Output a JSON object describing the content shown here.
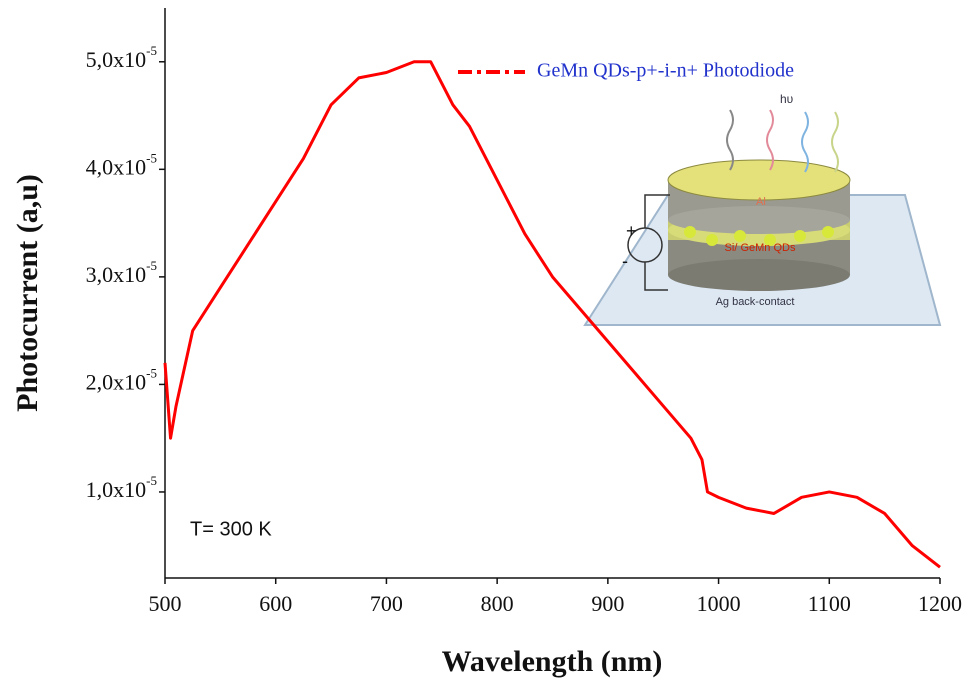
{
  "chart_data": {
    "type": "line",
    "x_label": "Wavelength (nm)",
    "y_label": "Photocurrent  (a,u)",
    "annotation": "T= 300 K",
    "x": [
      500,
      505,
      510,
      525,
      550,
      575,
      600,
      625,
      650,
      675,
      700,
      725,
      740,
      760,
      775,
      800,
      825,
      850,
      875,
      900,
      925,
      950,
      975,
      985,
      990,
      1000,
      1025,
      1050,
      1075,
      1100,
      1125,
      1150,
      1175,
      1200
    ],
    "series": [
      {
        "name": "GeMn QDs-p+-i-n+ Photodiode",
        "color": "#ff0000",
        "values": [
          2.2e-05,
          1.5e-05,
          1.8e-05,
          2.5e-05,
          2.9e-05,
          3.3e-05,
          3.7e-05,
          4.1e-05,
          4.6e-05,
          4.85e-05,
          4.9e-05,
          5e-05,
          5e-05,
          4.6e-05,
          4.4e-05,
          3.9e-05,
          3.4e-05,
          3e-05,
          2.7e-05,
          2.4e-05,
          2.1e-05,
          1.8e-05,
          1.5e-05,
          1.3e-05,
          1e-05,
          9.5e-06,
          8.5e-06,
          8e-06,
          9.5e-06,
          1e-05,
          9.5e-06,
          8e-06,
          5e-06,
          3e-06
        ]
      }
    ],
    "xlim": [
      500,
      1200
    ],
    "xticks": [
      500,
      600,
      700,
      800,
      900,
      1000,
      1100,
      1200
    ],
    "ylim": [
      2e-06,
      5.5e-05
    ],
    "yticks": [
      {
        "value": 1e-05,
        "label": "1,0x10-5"
      },
      {
        "value": 2e-05,
        "label": "2,0x10-5"
      },
      {
        "value": 3e-05,
        "label": "3,0x10-5"
      },
      {
        "value": 4e-05,
        "label": "4,0x10-5"
      },
      {
        "value": 5e-05,
        "label": "5,0x10-5"
      }
    ],
    "inset": {
      "labels": [
        "hυ",
        "Al",
        "Si/ GeMn QDs",
        "Ag back-contact",
        "+",
        "-"
      ]
    }
  }
}
